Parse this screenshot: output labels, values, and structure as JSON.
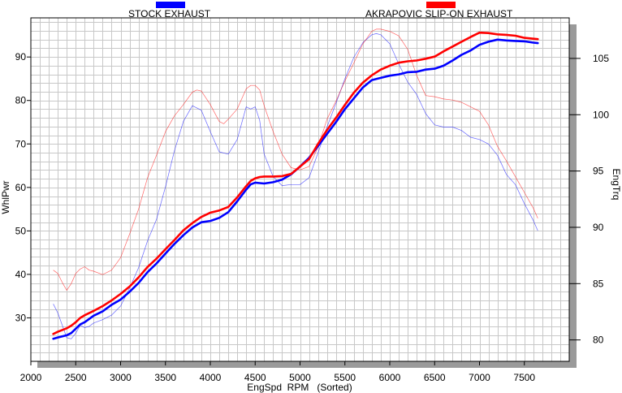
{
  "chart_data": {
    "type": "line",
    "xlabel": "EngSpd  RPM   (Sorted)",
    "ylabel_left": "WhlPwr",
    "ylabel_right": "EngTrq",
    "xlim": [
      2000,
      8000
    ],
    "ylim_left": [
      20,
      99
    ],
    "ylim_right": [
      78.1,
      108.6
    ],
    "x_ticks": [
      "2000",
      "2500",
      "3000",
      "3500",
      "4000",
      "4500",
      "5000",
      "5500",
      "6000",
      "6500",
      "7000",
      "7500"
    ],
    "y_ticks_left": [
      "30",
      "40",
      "50",
      "60",
      "70",
      "80",
      "90"
    ],
    "y_ticks_right": [
      "80",
      "85",
      "90",
      "95",
      "100",
      "105"
    ],
    "grid": true,
    "legend": "top",
    "series": [
      {
        "name": "STOCK EXHAUST",
        "color": "#0000ff",
        "power": {
          "x": [
            2250,
            2300,
            2400,
            2450,
            2500,
            2550,
            2600,
            2700,
            2800,
            2900,
            3000,
            3100,
            3200,
            3300,
            3400,
            3500,
            3600,
            3700,
            3800,
            3900,
            4000,
            4100,
            4200,
            4300,
            4400,
            4450,
            4500,
            4550,
            4600,
            4700,
            4800,
            4900,
            5000,
            5100,
            5200,
            5300,
            5400,
            5500,
            5600,
            5700,
            5800,
            5900,
            6000,
            6100,
            6200,
            6300,
            6400,
            6500,
            6600,
            6700,
            6800,
            6900,
            7000,
            7100,
            7200,
            7300,
            7400,
            7500,
            7600,
            7650
          ],
          "y": [
            25.2,
            25.5,
            26,
            26.5,
            27.5,
            28.5,
            29,
            30.5,
            31.5,
            33,
            34.2,
            36,
            38,
            40.5,
            42.5,
            44.8,
            47,
            49,
            50.8,
            52,
            52.3,
            53,
            54.3,
            56.8,
            59.5,
            60.7,
            61.1,
            61,
            60.9,
            61.2,
            61.8,
            63,
            64.8,
            66.8,
            69.5,
            72.3,
            75,
            78,
            80.5,
            83,
            84.7,
            85.2,
            85.7,
            86,
            86.5,
            86.6,
            87.1,
            87.3,
            88,
            89.2,
            90.5,
            91.5,
            92.8,
            93.5,
            94,
            93.8,
            93.7,
            93.6,
            93.3,
            93.2
          ]
        },
        "torque": {
          "x": [
            2250,
            2300,
            2400,
            2450,
            2500,
            2550,
            2600,
            2650,
            2700,
            2800,
            2900,
            3000,
            3100,
            3200,
            3300,
            3400,
            3500,
            3600,
            3700,
            3800,
            3900,
            4000,
            4100,
            4200,
            4300,
            4400,
            4450,
            4500,
            4550,
            4600,
            4700,
            4800,
            4900,
            5000,
            5100,
            5200,
            5300,
            5400,
            5500,
            5600,
            5700,
            5800,
            5850,
            5900,
            6000,
            6100,
            6200,
            6300,
            6400,
            6500,
            6600,
            6700,
            6800,
            6900,
            7000,
            7100,
            7200,
            7300,
            7400,
            7500,
            7600,
            7650
          ],
          "y": [
            83.2,
            82.4,
            80.2,
            80.1,
            80.6,
            81.3,
            81.1,
            81.2,
            81.5,
            81.8,
            82.2,
            83,
            84.6,
            86.4,
            88.8,
            90.7,
            93.6,
            96.8,
            99.4,
            100.8,
            100.4,
            98.5,
            96.7,
            96.5,
            97.8,
            100.7,
            100.5,
            100.7,
            99.5,
            96.5,
            94.5,
            93.7,
            93.8,
            93.8,
            94.4,
            96.6,
            98.9,
            101,
            103.2,
            105.1,
            106.4,
            107.1,
            107.2,
            107.1,
            106.3,
            104.5,
            102.9,
            101.8,
            100.1,
            99.1,
            98.9,
            98.9,
            98.6,
            98,
            97.8,
            97.4,
            96.4,
            94.7,
            93.8,
            92.1,
            90.6,
            89.7
          ]
        }
      },
      {
        "name": "AKRAPOVIC SLIP-ON EXHAUST",
        "color": "#ff0000",
        "power": {
          "x": [
            2250,
            2300,
            2400,
            2450,
            2500,
            2550,
            2600,
            2700,
            2800,
            2900,
            3000,
            3100,
            3200,
            3300,
            3400,
            3500,
            3600,
            3700,
            3800,
            3900,
            4000,
            4100,
            4200,
            4300,
            4400,
            4450,
            4500,
            4550,
            4600,
            4700,
            4800,
            4900,
            5000,
            5100,
            5200,
            5300,
            5400,
            5500,
            5600,
            5700,
            5800,
            5900,
            6000,
            6100,
            6200,
            6300,
            6400,
            6500,
            6600,
            6700,
            6800,
            6900,
            7000,
            7100,
            7200,
            7300,
            7400,
            7500,
            7600,
            7650
          ],
          "y": [
            26.3,
            26.8,
            27.6,
            28.2,
            29,
            30,
            30.6,
            31.6,
            32.7,
            34,
            35.5,
            37.2,
            39.3,
            41.7,
            43.6,
            45.8,
            47.9,
            50.1,
            51.8,
            53.2,
            54.2,
            54.7,
            55.5,
            57.7,
            60.3,
            61.5,
            62.1,
            62.4,
            62.5,
            62.5,
            62.6,
            63.1,
            64.8,
            66.5,
            70,
            73.2,
            76,
            79,
            81.8,
            84.1,
            85.8,
            87.1,
            88,
            88.7,
            89,
            89.2,
            89.6,
            90.1,
            91.3,
            92.4,
            93.5,
            94.6,
            95.6,
            95.5,
            95.2,
            95.1,
            94.9,
            94.4,
            94.2,
            94.1
          ]
        },
        "torque": {
          "x": [
            2250,
            2300,
            2350,
            2400,
            2450,
            2500,
            2550,
            2600,
            2650,
            2700,
            2800,
            2900,
            3000,
            3100,
            3200,
            3300,
            3400,
            3500,
            3600,
            3700,
            3800,
            3850,
            3900,
            4000,
            4100,
            4150,
            4200,
            4300,
            4400,
            4450,
            4500,
            4550,
            4600,
            4700,
            4800,
            4900,
            5000,
            5100,
            5200,
            5300,
            5400,
            5500,
            5600,
            5700,
            5800,
            5850,
            5900,
            6000,
            6100,
            6200,
            6300,
            6400,
            6500,
            6600,
            6700,
            6800,
            6900,
            7000,
            7100,
            7200,
            7300,
            7400,
            7500,
            7600,
            7650
          ],
          "y": [
            86.2,
            85.9,
            85.1,
            84.4,
            85,
            85.9,
            86.3,
            86.5,
            86.2,
            86.1,
            85.8,
            86.2,
            87.3,
            89.4,
            91.6,
            94.4,
            96.4,
            98.5,
            99.9,
            100.9,
            102,
            102.2,
            102.1,
            100.9,
            99.4,
            99.2,
            99.6,
            100.5,
            102.3,
            102.6,
            102.6,
            102.2,
            100.8,
            98.5,
            96.5,
            95.3,
            95.1,
            95.4,
            97.1,
            99.6,
            101.2,
            103,
            104.6,
            106.3,
            107.4,
            107.6,
            107.6,
            107.4,
            107,
            105.8,
            103.5,
            101.7,
            101.6,
            101.4,
            101.3,
            101.1,
            100.7,
            100.3,
            99.1,
            97.2,
            95.9,
            94.5,
            93.1,
            91.7,
            90.8
          ]
        }
      }
    ]
  }
}
